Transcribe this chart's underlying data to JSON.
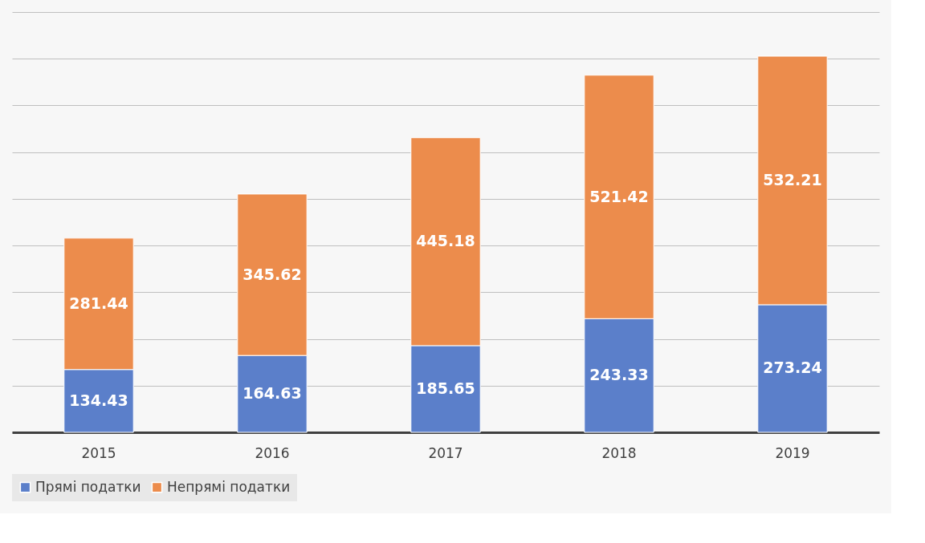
{
  "chart_data": {
    "type": "bar",
    "stacked": true,
    "categories": [
      "2015",
      "2016",
      "2017",
      "2018",
      "2019"
    ],
    "series": [
      {
        "name": "Прямі податки",
        "color": "#5b7fca",
        "values": [
          134.43,
          164.63,
          185.65,
          243.33,
          273.24
        ]
      },
      {
        "name": "Непрямі податки",
        "color": "#ec8c4c",
        "values": [
          281.44,
          345.62,
          445.18,
          521.42,
          532.21
        ]
      }
    ],
    "ylim": [
      0,
      900
    ],
    "yticks": [
      {
        "value": 0,
        "label": null
      },
      {
        "value": 100,
        "label": null
      },
      {
        "value": 200,
        "label": null
      },
      {
        "value": 300,
        "label": null
      },
      {
        "value": 400,
        "label": null
      },
      {
        "value": 500,
        "label": null
      },
      {
        "value": 600,
        "label": null
      },
      {
        "value": 700,
        "label": null
      },
      {
        "value": 800,
        "label": null
      },
      {
        "value": 900,
        "label": null
      }
    ],
    "grid": "y",
    "tick_labels": "x",
    "data_labels": true,
    "legend": "bottom"
  }
}
